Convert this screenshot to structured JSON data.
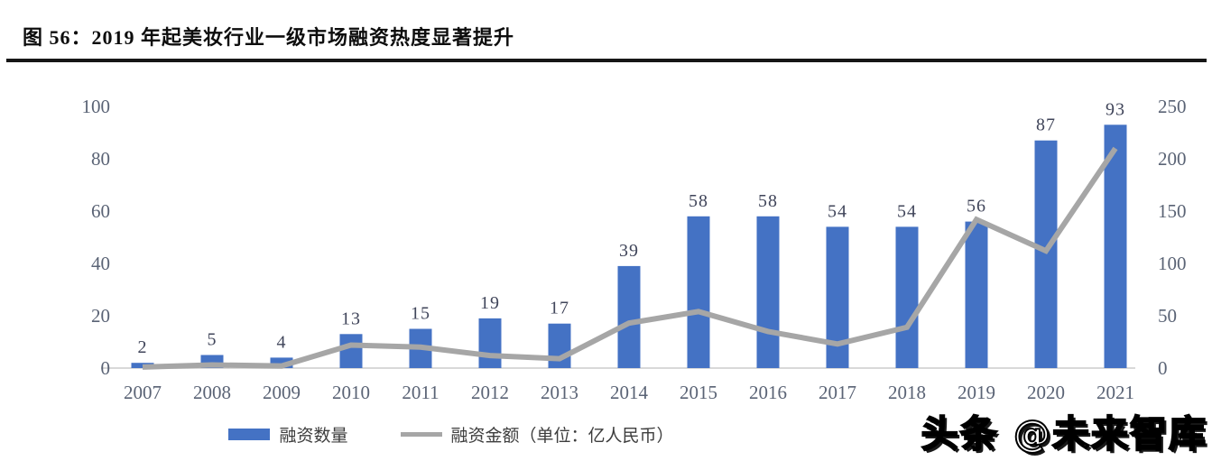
{
  "header": {
    "title": "图 56：2019 年起美妆行业一级市场融资热度显著提升"
  },
  "chart_data": {
    "type": "bar",
    "title": "",
    "categories": [
      "2007",
      "2008",
      "2009",
      "2010",
      "2011",
      "2012",
      "2013",
      "2014",
      "2015",
      "2016",
      "2017",
      "2018",
      "2019",
      "2020",
      "2021"
    ],
    "series": [
      {
        "name": "融资数量",
        "type": "bar",
        "axis": "left",
        "color": "#4472C4",
        "values": [
          2,
          5,
          4,
          13,
          15,
          19,
          17,
          39,
          58,
          58,
          54,
          54,
          56,
          87,
          93
        ],
        "data_labels": true
      },
      {
        "name": "融资金额（单位：亿人民币）",
        "type": "line",
        "axis": "right",
        "color": "#A6A6A6",
        "values": [
          1,
          3,
          2,
          22,
          20,
          12,
          9,
          43,
          54,
          35,
          23,
          39,
          142,
          112,
          210
        ],
        "data_labels": false
      }
    ],
    "left_axis": {
      "min": 0,
      "max": 100,
      "step": 20,
      "ticks": [
        0,
        20,
        40,
        60,
        80,
        100
      ]
    },
    "right_axis": {
      "min": 0,
      "max": 250,
      "step": 50,
      "ticks": [
        0,
        50,
        100,
        150,
        200,
        250
      ]
    },
    "grid": false,
    "legend_position": "bottom",
    "xlabel": "",
    "ylabel": ""
  },
  "legend": {
    "items": [
      {
        "label": "融资数量",
        "color": "#4472C4",
        "shape": "rect"
      },
      {
        "label": "融资金额（单位：亿人民币）",
        "color": "#A6A6A6",
        "shape": "line"
      }
    ]
  },
  "watermark": {
    "text": "头条 @未来智库"
  },
  "colors": {
    "bar": "#4472C4",
    "line": "#A6A6A6",
    "baseline": "#D9D9D9",
    "axis_label": "#5A6375",
    "data_label": "#40455A",
    "title": "#0d0d0d"
  }
}
